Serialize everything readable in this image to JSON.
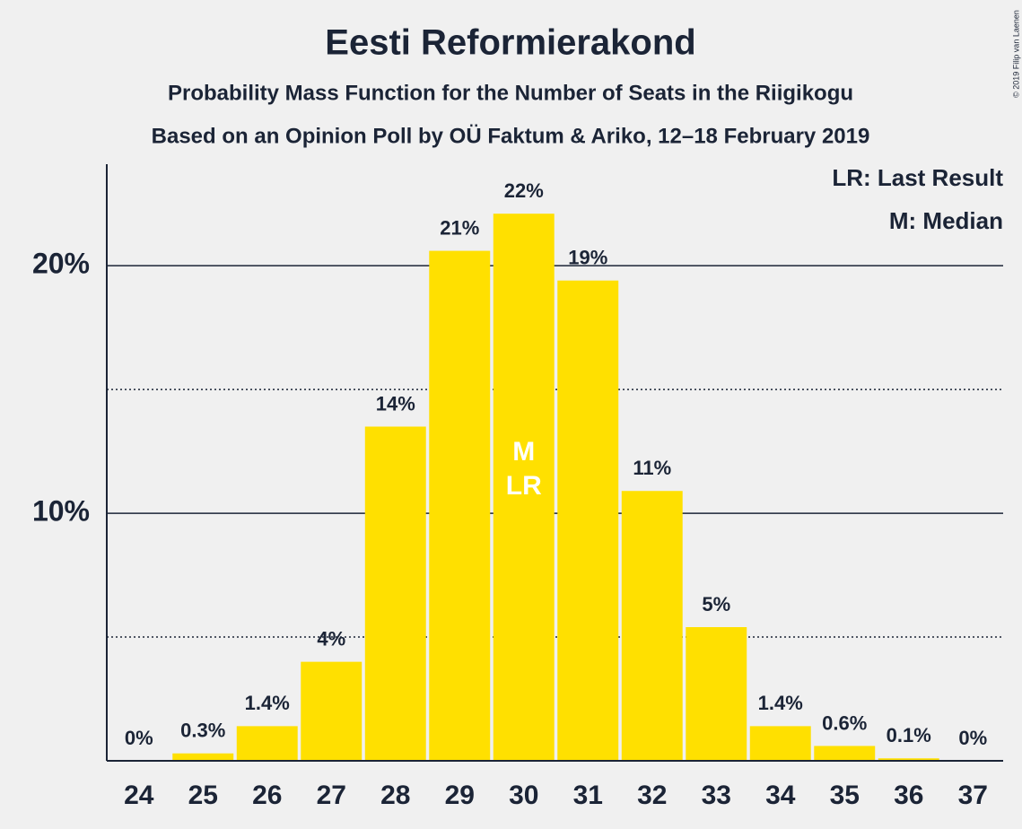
{
  "chart_data": {
    "type": "bar",
    "title": "Eesti Reformierakond",
    "subtitle": "Probability Mass Function for the Number of Seats in the Riigikogu",
    "subtitle2": "Based on an Opinion Poll by OÜ Faktum & Ariko, 12–18 February 2019",
    "copyright": "© 2019 Filip van Laenen",
    "legend": [
      "LR: Last Result",
      "M: Median"
    ],
    "legend_position": "top-right",
    "categories": [
      "24",
      "25",
      "26",
      "27",
      "28",
      "29",
      "30",
      "31",
      "32",
      "33",
      "34",
      "35",
      "36",
      "37"
    ],
    "values": [
      0,
      0.3,
      1.4,
      4.0,
      13.5,
      20.6,
      22.1,
      19.4,
      10.9,
      5.4,
      1.4,
      0.6,
      0.1,
      0
    ],
    "value_labels": [
      "0%",
      "0.3%",
      "1.4%",
      "4%",
      "14%",
      "21%",
      "22%",
      "19%",
      "11%",
      "5%",
      "1.4%",
      "0.6%",
      "0.1%",
      "0%"
    ],
    "color": "#ffe000",
    "annotations": [
      {
        "text": "M",
        "category": "30"
      },
      {
        "text": "LR",
        "category": "30"
      }
    ],
    "ylim": [
      0,
      24.1
    ],
    "yticks": [
      {
        "value": 10,
        "label": "10%"
      },
      {
        "value": 20,
        "label": "20%"
      }
    ],
    "minor_yticks": [
      5,
      15
    ],
    "grid": true
  }
}
